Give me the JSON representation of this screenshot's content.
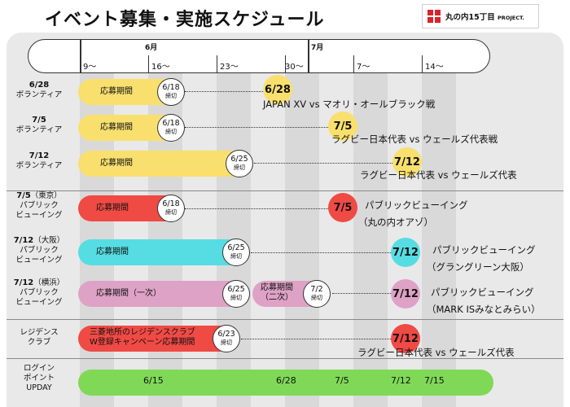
{
  "header": {
    "title": "イベント募集・実施スケジュール",
    "logo_text": "丸の内15丁目",
    "logo_sub": "PROJECT."
  },
  "colors": {
    "yellow": "#f9e06e",
    "red": "#f04a45",
    "cyan": "#56dde3",
    "pink": "#dea2c6",
    "green": "#7fd957",
    "board": "#e9e9e9",
    "column": "#d9d9d9"
  },
  "timeline": {
    "months": [
      "6月",
      "7月"
    ],
    "weeks": [
      "9〜",
      "16〜",
      "23〜",
      "30〜",
      "7〜",
      "14〜"
    ]
  },
  "labels": {
    "r1": {
      "date": "6/28",
      "sub": "ボランティア"
    },
    "r2": {
      "date": "7/5",
      "sub": "ボランティア"
    },
    "r3": {
      "date": "7/12",
      "sub": "ボランティア"
    },
    "r4": {
      "date": "7/5",
      "paren": "（東京）",
      "sub1": "パブリック",
      "sub2": "ビューイング"
    },
    "r5": {
      "date": "7/12",
      "paren": "（大阪）",
      "sub1": "パブリック",
      "sub2": "ビューイング"
    },
    "r6": {
      "date": "7/12",
      "paren": "（横浜）",
      "sub1": "パブリック",
      "sub2": "ビューイング"
    },
    "r7": {
      "l1": "レジデンス",
      "l2": "クラブ"
    },
    "r8": {
      "l1": "ログイン",
      "l2": "ポイント",
      "l3": "UPDAY"
    }
  },
  "rows": {
    "r1": {
      "pill": "応募期間",
      "deadline": "6/18",
      "kanji": "締切",
      "event_date": "6/28",
      "event": "JAPAN XV vs マオリ・オールブラック戦"
    },
    "r2": {
      "pill": "応募期間",
      "deadline": "6/18",
      "kanji": "締切",
      "event_date": "7/5",
      "event": "ラグビー日本代表 vs ウェールズ代表戦"
    },
    "r3": {
      "pill": "応募期間",
      "deadline": "6/25",
      "kanji": "締切",
      "event_date": "7/12",
      "event": "ラグビー日本代表 vs ウェールズ代表"
    },
    "r4": {
      "pill": "応募期間",
      "deadline": "6/18",
      "kanji": "締切",
      "event_date": "7/5",
      "event1": "パブリックビューイング",
      "event2": "（丸の内オアゾ）"
    },
    "r5": {
      "pill": "応募期間",
      "deadline": "6/25",
      "kanji": "締切",
      "event_date": "7/12",
      "event1": "パブリックビューイング",
      "event2": "（グラングリーン大阪）"
    },
    "r6": {
      "pill": "応募期間（一次）",
      "deadline": "6/25",
      "kanji": "締切",
      "pill2a": "応募期間",
      "pill2b": "（二次）",
      "deadline2": "7/2",
      "kanji2": "締切",
      "event_date": "7/12",
      "event1": "パブリックビューイング",
      "event2": "（MARK ISみなとみらい）"
    },
    "r7": {
      "pill1": "三菱地所のレジデンスクラブ",
      "pill2": "W登録キャンペーン応募期間",
      "deadline": "6/23",
      "kanji": "締切",
      "event_date": "7/12",
      "event": "ラグビー日本代表 vs ウェールズ代表"
    },
    "r8": {
      "dates": [
        "6/15",
        "6/28",
        "7/5",
        "7/12",
        "7/15"
      ]
    }
  }
}
